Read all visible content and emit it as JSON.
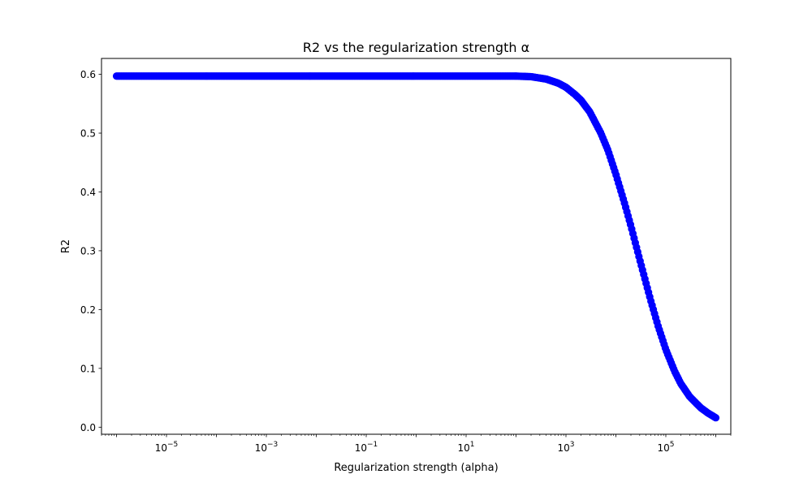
{
  "chart_data": {
    "type": "scatter",
    "title": "R2 vs the regularization strength α",
    "xlabel": "Regularization strength (alpha)",
    "ylabel": "R2",
    "xscale": "log",
    "xlim": [
      5e-07,
      2000000.0
    ],
    "ylim": [
      -0.012,
      0.627
    ],
    "x_ticks": [
      {
        "value": 1e-05,
        "base": "10",
        "exp": "−5"
      },
      {
        "value": 0.001,
        "base": "10",
        "exp": "−3"
      },
      {
        "value": 0.1,
        "base": "10",
        "exp": "−1"
      },
      {
        "value": 10.0,
        "base": "10",
        "exp": "1"
      },
      {
        "value": 1000.0,
        "base": "10",
        "exp": "3"
      },
      {
        "value": 100000.0,
        "base": "10",
        "exp": "5"
      }
    ],
    "y_ticks": [
      {
        "value": 0.0,
        "label": "0.0"
      },
      {
        "value": 0.1,
        "label": "0.1"
      },
      {
        "value": 0.2,
        "label": "0.2"
      },
      {
        "value": 0.3,
        "label": "0.3"
      },
      {
        "value": 0.4,
        "label": "0.4"
      },
      {
        "value": 0.5,
        "label": "0.5"
      },
      {
        "value": 0.6,
        "label": "0.6"
      }
    ],
    "grid": false,
    "marker_color": "#0000ff",
    "series": [
      {
        "x": [
          1e-06,
          1e-05,
          0.0001,
          0.001,
          0.01,
          0.1,
          1,
          10,
          100,
          200,
          400,
          700,
          1000,
          1500,
          2000,
          3000,
          5000,
          7000,
          10000,
          15000,
          20000,
          30000,
          50000,
          70000,
          100000,
          150000,
          200000,
          300000,
          500000,
          700000,
          1000000
        ],
        "y": [
          0.597,
          0.597,
          0.597,
          0.597,
          0.597,
          0.597,
          0.597,
          0.597,
          0.597,
          0.596,
          0.592,
          0.585,
          0.578,
          0.566,
          0.556,
          0.536,
          0.5,
          0.47,
          0.43,
          0.38,
          0.342,
          0.285,
          0.215,
          0.172,
          0.132,
          0.095,
          0.074,
          0.052,
          0.033,
          0.024,
          0.016
        ]
      }
    ]
  }
}
